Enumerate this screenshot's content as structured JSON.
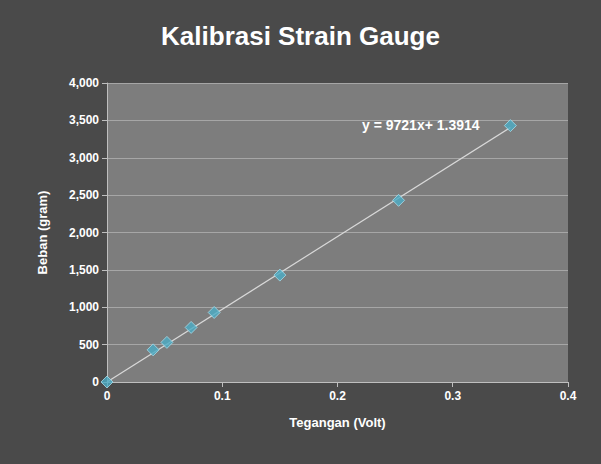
{
  "chart_data": {
    "type": "scatter",
    "title": "Kalibrasi Strain Gauge",
    "x_label": "Tegangan (Volt)",
    "y_label": "Beban (gram)",
    "annotation": "y = 9721x+ 1.3914",
    "xlim": [
      0,
      0.4
    ],
    "xticks": [
      0,
      0.1,
      0.2,
      0.3,
      0.4
    ],
    "ylim": [
      0,
      4000
    ],
    "yticks": [
      0,
      500,
      1000,
      1500,
      2000,
      2500,
      3000,
      3500,
      4000
    ],
    "grid": true,
    "series": [
      {
        "type": "scatter",
        "color": "#4bacc6",
        "marker": "diamond",
        "x": [
          0,
          0.04,
          0.052,
          0.073,
          0.093,
          0.15,
          0.253,
          0.35
        ],
        "values": [
          0,
          430,
          530,
          730,
          930,
          1430,
          2430,
          3430
        ]
      },
      {
        "type": "line",
        "color": "#d9d9d9",
        "line_style": "solid",
        "x": [
          0,
          0.35
        ],
        "values": [
          1.4,
          3404
        ]
      }
    ]
  }
}
